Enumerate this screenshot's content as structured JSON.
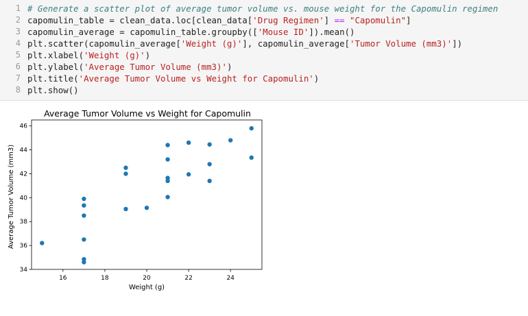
{
  "code_cell": {
    "lines": [
      [
        {
          "t": "# Generate a scatter plot of average tumor volume vs. mouse weight for the Capomulin regimen",
          "c": "tk-comment"
        }
      ],
      [
        {
          "t": "capomulin_table = clean_data.loc[clean_data[",
          "c": ""
        },
        {
          "t": "'Drug Regimen'",
          "c": "tk-string"
        },
        {
          "t": "] ",
          "c": ""
        },
        {
          "t": "==",
          "c": "tk-op"
        },
        {
          "t": " ",
          "c": ""
        },
        {
          "t": "\"Capomulin\"",
          "c": "tk-string"
        },
        {
          "t": "]",
          "c": ""
        }
      ],
      [
        {
          "t": "capomulin_average = capomulin_table.groupby([",
          "c": ""
        },
        {
          "t": "'Mouse ID'",
          "c": "tk-string"
        },
        {
          "t": "]).mean()",
          "c": ""
        }
      ],
      [
        {
          "t": "plt.scatter(capomulin_average[",
          "c": ""
        },
        {
          "t": "'Weight (g)'",
          "c": "tk-string"
        },
        {
          "t": "], capomulin_average[",
          "c": ""
        },
        {
          "t": "'Tumor Volume (mm3)'",
          "c": "tk-string"
        },
        {
          "t": "])",
          "c": ""
        }
      ],
      [
        {
          "t": "plt.xlabel(",
          "c": ""
        },
        {
          "t": "'Weight (g)'",
          "c": "tk-string"
        },
        {
          "t": ")",
          "c": ""
        }
      ],
      [
        {
          "t": "plt.ylabel(",
          "c": ""
        },
        {
          "t": "'Average Tumor Volume (mm3)'",
          "c": "tk-string"
        },
        {
          "t": ")",
          "c": ""
        }
      ],
      [
        {
          "t": "plt.title(",
          "c": ""
        },
        {
          "t": "'Average Tumor Volume vs Weight for Capomulin'",
          "c": "tk-string"
        },
        {
          "t": ")",
          "c": ""
        }
      ],
      [
        {
          "t": "plt.show()",
          "c": ""
        }
      ]
    ],
    "line_numbers": [
      "1",
      "2",
      "3",
      "4",
      "5",
      "6",
      "7",
      "8"
    ]
  },
  "chart_data": {
    "type": "scatter",
    "title": "Average Tumor Volume vs Weight for Capomulin",
    "xlabel": "Weight (g)",
    "ylabel": "Average Tumor Volume (mm3)",
    "xlim": [
      14.5,
      25.5
    ],
    "ylim": [
      34,
      46.5
    ],
    "xticks": [
      16,
      18,
      20,
      22,
      24
    ],
    "yticks": [
      34,
      36,
      38,
      40,
      42,
      44,
      46
    ],
    "marker_color": "#1f77b4",
    "grid": false,
    "points": [
      {
        "x": 15,
        "y": 36.2
      },
      {
        "x": 17,
        "y": 34.6
      },
      {
        "x": 17,
        "y": 34.85
      },
      {
        "x": 17,
        "y": 36.5
      },
      {
        "x": 17,
        "y": 38.5
      },
      {
        "x": 17,
        "y": 39.35
      },
      {
        "x": 17,
        "y": 39.9
      },
      {
        "x": 19,
        "y": 39.05
      },
      {
        "x": 19,
        "y": 42.0
      },
      {
        "x": 19,
        "y": 42.5
      },
      {
        "x": 20,
        "y": 39.15
      },
      {
        "x": 21,
        "y": 40.05
      },
      {
        "x": 21,
        "y": 41.4
      },
      {
        "x": 21,
        "y": 41.65
      },
      {
        "x": 21,
        "y": 43.2
      },
      {
        "x": 21,
        "y": 44.4
      },
      {
        "x": 22,
        "y": 41.95
      },
      {
        "x": 22,
        "y": 44.6
      },
      {
        "x": 23,
        "y": 41.4
      },
      {
        "x": 23,
        "y": 42.8
      },
      {
        "x": 23,
        "y": 44.45
      },
      {
        "x": 24,
        "y": 44.8
      },
      {
        "x": 25,
        "y": 43.35
      },
      {
        "x": 25,
        "y": 45.8
      }
    ]
  }
}
